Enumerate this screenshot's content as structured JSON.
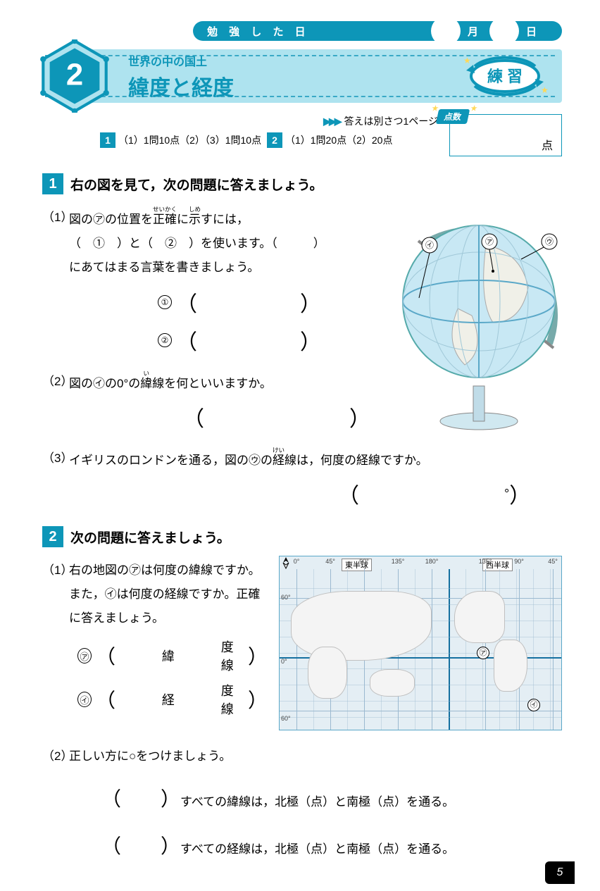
{
  "date_bar": {
    "label": "勉 強 し た 日",
    "month": "月",
    "day": "日"
  },
  "title": {
    "sub": "世界の中の国土",
    "main": "緯度と経度",
    "badge": "練 習",
    "number": "2"
  },
  "answers_ref": "答えは別さつ1ページ",
  "scoring": {
    "box1": "1",
    "s1": "（1）1問10点（2）（3）1問10点",
    "box2": "2",
    "s2": "（1）1問20点（2）20点"
  },
  "score_box": {
    "tab": "点数",
    "unit": "点"
  },
  "q1": {
    "num": "1",
    "head": "右の図を見て，次の問題に答えましょう。",
    "p1_no": "（1）",
    "p1": "図の㋐の位置を正確に示すには，（　①　）と（　②　）を使います。（　　　）にあてはまる言葉を書きましょう。",
    "p1_ruby_seikaku": "せいかく",
    "p1_ruby_shime": "しめ",
    "a1_mark": "①",
    "a2_mark": "②",
    "p2_no": "（2）",
    "p2": "図の㋑の0°の緯線を何といいますか。",
    "p2_ruby": "い",
    "p3_no": "（3）",
    "p3": "イギリスのロンドンを通る，図の㋒の経線は，何度の経線ですか。",
    "p3_ruby": "けい",
    "deg_unit": "°",
    "globe_marks": {
      "a": "㋐",
      "i": "㋑",
      "u": "㋒"
    }
  },
  "q2": {
    "num": "2",
    "head": "次の問題に答えましょう。",
    "p1_no": "（1）",
    "p1": "右の地図の㋐は何度の緯線ですか。また，㋑は何度の経線ですか。正確に答えましょう。",
    "a_mark": "㋐",
    "a_text_l": "緯",
    "a_text_r": "度線",
    "i_mark": "㋑",
    "i_text_l": "経",
    "i_text_r": "度線",
    "p2_no": "（2）",
    "p2": "正しい方に○をつけましょう。",
    "opt1": "すべての緯線は，北極（点）と南極（点）を通る。",
    "opt2": "すべての経線は，北極（点）と南極（点）を通る。"
  },
  "map": {
    "east_label": "東半球",
    "west_label": "西半球",
    "lon_labels": [
      "0°",
      "45°",
      "90°",
      "135°",
      "180°",
      "135°",
      "90°",
      "45°"
    ],
    "lon_positions_pct": [
      6,
      18,
      30,
      42,
      54,
      73,
      85,
      97
    ],
    "major_lon_pct": 60,
    "lat_labels": [
      "60°",
      "0°",
      "60°"
    ],
    "lat_positions_pct": [
      18,
      55,
      88
    ],
    "major_lat_pct": 55,
    "mark_a": "㋐",
    "mark_a_pos": [
      48,
      70
    ],
    "mark_i": "㋑",
    "mark_i_pos": [
      78,
      88
    ]
  },
  "page_number": "5",
  "colors": {
    "accent": "#0d96b8",
    "band": "#aee3ef",
    "map_water": "#e4eef4",
    "grid": "#9cbad0",
    "grid_major": "#1570a0",
    "land": "#f4f4f4"
  }
}
